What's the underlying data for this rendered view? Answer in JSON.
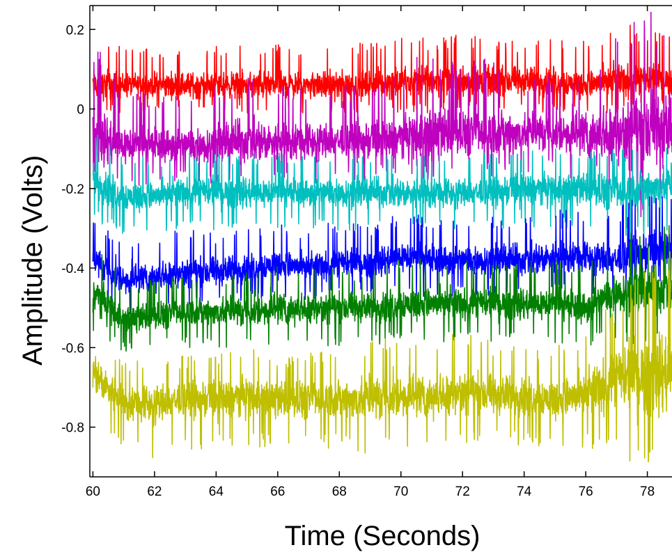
{
  "chart_data": {
    "type": "line",
    "title": "",
    "xlabel": "Time (Seconds)",
    "ylabel": "Amplitude (Volts)",
    "xlim": [
      59.9,
      78.8
    ],
    "ylim": [
      -0.925,
      0.26
    ],
    "xticks": [
      60,
      62,
      64,
      66,
      68,
      70,
      72,
      74,
      76,
      78
    ],
    "xtick_labels": [
      "60",
      "62",
      "64",
      "66",
      "68",
      "70",
      "72",
      "74",
      "76",
      "78"
    ],
    "yticks": [
      0.2,
      0,
      -0.2,
      -0.4,
      -0.6,
      -0.8
    ],
    "ytick_labels": [
      "0.2",
      "0",
      "-0.2",
      "-0.4",
      "-0.6",
      "-0.8"
    ],
    "grid": false,
    "legend": "none",
    "series": [
      {
        "color": "#ff0000",
        "x": [
          60,
          61,
          62,
          63,
          64,
          65,
          66,
          67,
          68,
          69,
          70,
          71,
          72,
          73,
          74,
          75,
          76,
          77,
          78,
          78.8
        ],
        "mean": [
          0.06,
          0.06,
          0.06,
          0.06,
          0.06,
          0.06,
          0.06,
          0.06,
          0.06,
          0.06,
          0.07,
          0.07,
          0.07,
          0.07,
          0.07,
          0.07,
          0.06,
          0.07,
          0.07,
          0.07
        ],
        "min": [
          -0.01,
          -0.01,
          -0.01,
          -0.01,
          -0.01,
          -0.01,
          -0.01,
          -0.01,
          -0.01,
          -0.01,
          -0.01,
          -0.01,
          0.0,
          -0.01,
          -0.01,
          -0.01,
          -0.01,
          -0.01,
          0.0,
          0.0
        ],
        "max": [
          0.2,
          0.16,
          0.15,
          0.16,
          0.16,
          0.16,
          0.17,
          0.16,
          0.16,
          0.17,
          0.18,
          0.18,
          0.19,
          0.18,
          0.17,
          0.18,
          0.17,
          0.22,
          0.2,
          0.19
        ]
      },
      {
        "color": "#bf00bf",
        "x": [
          60,
          61,
          62,
          63,
          64,
          65,
          66,
          67,
          68,
          69,
          70,
          71,
          72,
          73,
          74,
          75,
          76,
          77,
          78,
          78.8
        ],
        "mean": [
          -0.07,
          -0.09,
          -0.09,
          -0.09,
          -0.09,
          -0.08,
          -0.08,
          -0.08,
          -0.08,
          -0.08,
          -0.07,
          -0.06,
          -0.06,
          -0.06,
          -0.06,
          -0.06,
          -0.06,
          -0.06,
          -0.05,
          -0.05
        ],
        "min": [
          -0.18,
          -0.2,
          -0.19,
          -0.18,
          -0.19,
          -0.19,
          -0.18,
          -0.19,
          -0.18,
          -0.18,
          -0.16,
          -0.18,
          -0.15,
          -0.17,
          -0.16,
          -0.15,
          -0.2,
          -0.22,
          -0.3,
          -0.25
        ],
        "max": [
          0.2,
          0.05,
          0.04,
          0.05,
          0.06,
          0.09,
          0.06,
          0.05,
          0.06,
          0.06,
          0.1,
          0.16,
          0.12,
          0.14,
          0.08,
          0.09,
          0.1,
          0.18,
          0.26,
          0.22
        ]
      },
      {
        "color": "#00bfbf",
        "x": [
          60,
          61,
          62,
          63,
          64,
          65,
          66,
          67,
          68,
          69,
          70,
          71,
          72,
          73,
          74,
          75,
          76,
          77,
          78,
          78.8
        ],
        "mean": [
          -0.18,
          -0.22,
          -0.22,
          -0.21,
          -0.21,
          -0.21,
          -0.21,
          -0.21,
          -0.21,
          -0.21,
          -0.21,
          -0.21,
          -0.21,
          -0.21,
          -0.2,
          -0.2,
          -0.2,
          -0.21,
          -0.2,
          -0.19
        ],
        "min": [
          -0.28,
          -0.32,
          -0.31,
          -0.3,
          -0.31,
          -0.31,
          -0.3,
          -0.3,
          -0.31,
          -0.3,
          -0.3,
          -0.31,
          -0.3,
          -0.3,
          -0.3,
          -0.3,
          -0.3,
          -0.34,
          -0.33,
          -0.3
        ],
        "max": [
          -0.05,
          -0.12,
          -0.12,
          -0.11,
          -0.11,
          -0.11,
          -0.11,
          -0.11,
          -0.11,
          -0.11,
          -0.11,
          -0.11,
          -0.11,
          -0.11,
          -0.1,
          -0.1,
          -0.1,
          -0.1,
          -0.08,
          -0.06
        ]
      },
      {
        "color": "#0000ff",
        "x": [
          60,
          61,
          62,
          63,
          64,
          65,
          66,
          67,
          68,
          69,
          70,
          71,
          72,
          73,
          74,
          75,
          76,
          77,
          78,
          78.8
        ],
        "mean": [
          -0.38,
          -0.43,
          -0.42,
          -0.41,
          -0.41,
          -0.4,
          -0.39,
          -0.4,
          -0.39,
          -0.39,
          -0.37,
          -0.38,
          -0.38,
          -0.38,
          -0.38,
          -0.37,
          -0.37,
          -0.38,
          -0.36,
          -0.35
        ],
        "min": [
          -0.48,
          -0.52,
          -0.5,
          -0.49,
          -0.5,
          -0.48,
          -0.48,
          -0.48,
          -0.47,
          -0.47,
          -0.46,
          -0.48,
          -0.47,
          -0.47,
          -0.47,
          -0.46,
          -0.46,
          -0.48,
          -0.47,
          -0.45
        ],
        "max": [
          -0.28,
          -0.33,
          -0.32,
          -0.3,
          -0.31,
          -0.3,
          -0.29,
          -0.3,
          -0.28,
          -0.29,
          -0.26,
          -0.27,
          -0.27,
          -0.27,
          -0.27,
          -0.25,
          -0.26,
          -0.25,
          -0.2,
          -0.22
        ]
      },
      {
        "color": "#007f00",
        "x": [
          60,
          61,
          62,
          63,
          64,
          65,
          66,
          67,
          68,
          69,
          70,
          71,
          72,
          73,
          74,
          75,
          76,
          77,
          78,
          78.8
        ],
        "mean": [
          -0.46,
          -0.53,
          -0.52,
          -0.51,
          -0.51,
          -0.51,
          -0.5,
          -0.5,
          -0.5,
          -0.5,
          -0.49,
          -0.49,
          -0.49,
          -0.49,
          -0.49,
          -0.49,
          -0.5,
          -0.46,
          -0.46,
          -0.45
        ],
        "min": [
          -0.56,
          -0.61,
          -0.6,
          -0.6,
          -0.6,
          -0.6,
          -0.59,
          -0.59,
          -0.6,
          -0.6,
          -0.58,
          -0.59,
          -0.58,
          -0.59,
          -0.58,
          -0.59,
          -0.6,
          -0.58,
          -0.6,
          -0.58
        ],
        "max": [
          -0.3,
          -0.44,
          -0.42,
          -0.42,
          -0.42,
          -0.41,
          -0.38,
          -0.4,
          -0.4,
          -0.41,
          -0.37,
          -0.38,
          -0.38,
          -0.39,
          -0.38,
          -0.38,
          -0.38,
          -0.32,
          -0.3,
          -0.28
        ]
      },
      {
        "color": "#bfbf00",
        "x": [
          60,
          61,
          62,
          63,
          64,
          65,
          66,
          67,
          68,
          69,
          70,
          71,
          72,
          73,
          74,
          75,
          76,
          77,
          78,
          78.8
        ],
        "mean": [
          -0.66,
          -0.74,
          -0.74,
          -0.73,
          -0.73,
          -0.72,
          -0.73,
          -0.73,
          -0.73,
          -0.73,
          -0.72,
          -0.72,
          -0.71,
          -0.72,
          -0.72,
          -0.73,
          -0.72,
          -0.68,
          -0.67,
          -0.66
        ],
        "min": [
          -0.8,
          -0.86,
          -0.88,
          -0.86,
          -0.85,
          -0.85,
          -0.85,
          -0.86,
          -0.85,
          -0.87,
          -0.85,
          -0.85,
          -0.84,
          -0.84,
          -0.85,
          -0.86,
          -0.85,
          -0.88,
          -0.92,
          -0.88
        ],
        "max": [
          -0.55,
          -0.64,
          -0.62,
          -0.62,
          -0.61,
          -0.6,
          -0.62,
          -0.61,
          -0.6,
          -0.58,
          -0.57,
          -0.58,
          -0.56,
          -0.58,
          -0.6,
          -0.6,
          -0.55,
          -0.48,
          -0.38,
          -0.35
        ]
      }
    ]
  }
}
